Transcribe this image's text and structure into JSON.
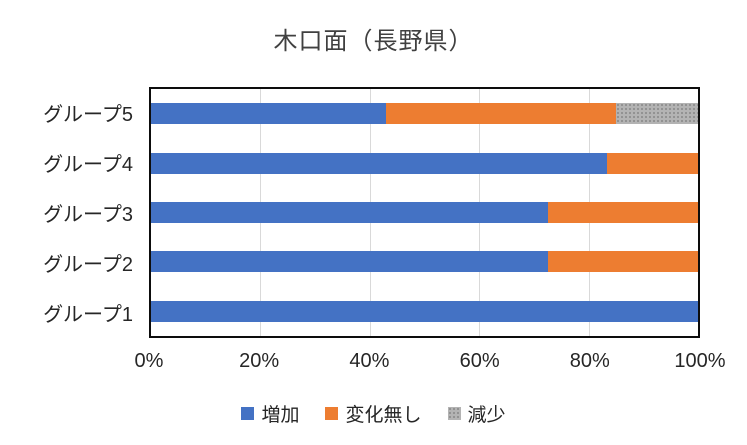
{
  "chart_data": {
    "type": "bar",
    "orientation": "horizontal",
    "stacked": true,
    "unit": "percent",
    "title": "木口面（長野県）",
    "categories": [
      "グループ5",
      "グループ4",
      "グループ3",
      "グループ2",
      "グループ1"
    ],
    "series": [
      {
        "name": "増加",
        "color": "#4472C4",
        "pattern": "solid",
        "values": [
          43,
          83.3,
          72.5,
          72.5,
          100
        ]
      },
      {
        "name": "変化無し",
        "color": "#ED7D31",
        "pattern": "solid",
        "values": [
          42,
          16.7,
          27.5,
          27.5,
          0
        ]
      },
      {
        "name": "減少",
        "color": "#A5A5A5",
        "pattern": "dotted",
        "values": [
          15,
          0,
          0,
          0,
          0
        ]
      }
    ],
    "xlabel": "",
    "ylabel": "",
    "x_ticks": [
      "0%",
      "20%",
      "40%",
      "60%",
      "80%",
      "100%"
    ],
    "xlim": [
      0,
      100
    ],
    "gridlines": true,
    "legend_position": "bottom",
    "legend_labels": [
      "増加",
      "変化無し",
      "減少"
    ]
  },
  "colors": {
    "increase": "#4472C4",
    "no_change": "#ED7D31",
    "decrease": "#A5A5A5",
    "gridline": "#D9D9D9",
    "plot_border": "#0D0D0D",
    "title_text": "#404040",
    "axis_text": "#262626"
  }
}
